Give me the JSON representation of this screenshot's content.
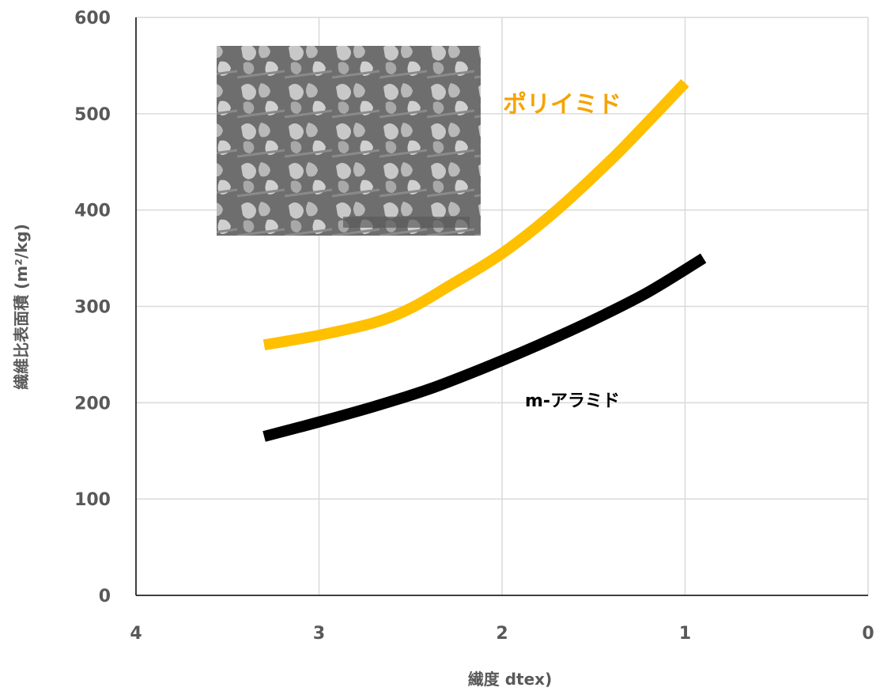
{
  "chart_data": {
    "type": "line",
    "xlabel": "繊度 dtex)",
    "ylabel": "繊維比表面積 (m²/kg)",
    "xlim": [
      4,
      0
    ],
    "ylim": [
      0,
      600
    ],
    "x_reversed": true,
    "x_ticks": [
      "4",
      "3",
      "2",
      "1",
      "0"
    ],
    "y_ticks": [
      "0",
      "100",
      "200",
      "300",
      "400",
      "500",
      "600"
    ],
    "grid": true,
    "legend": "none",
    "series": [
      {
        "name": "ポリイミド",
        "color": "#FFC000",
        "label_color": "#F5A300",
        "x": [
          3.3,
          3.0,
          2.7,
          2.5,
          2.3,
          2.0,
          1.7,
          1.4,
          1.2,
          1.0
        ],
        "y": [
          260,
          270,
          283,
          298,
          320,
          355,
          400,
          453,
          492,
          532
        ]
      },
      {
        "name": "m-アラミド",
        "color": "#000000",
        "label_color": "#000000",
        "x": [
          3.3,
          3.0,
          2.7,
          2.4,
          2.1,
          1.8,
          1.5,
          1.2,
          0.9
        ],
        "y": [
          165,
          180,
          196,
          214,
          236,
          260,
          286,
          315,
          350
        ]
      }
    ],
    "annotations": [
      {
        "type": "image",
        "description": "SEM micrograph",
        "icon": "sem-micrograph-icon"
      }
    ]
  }
}
